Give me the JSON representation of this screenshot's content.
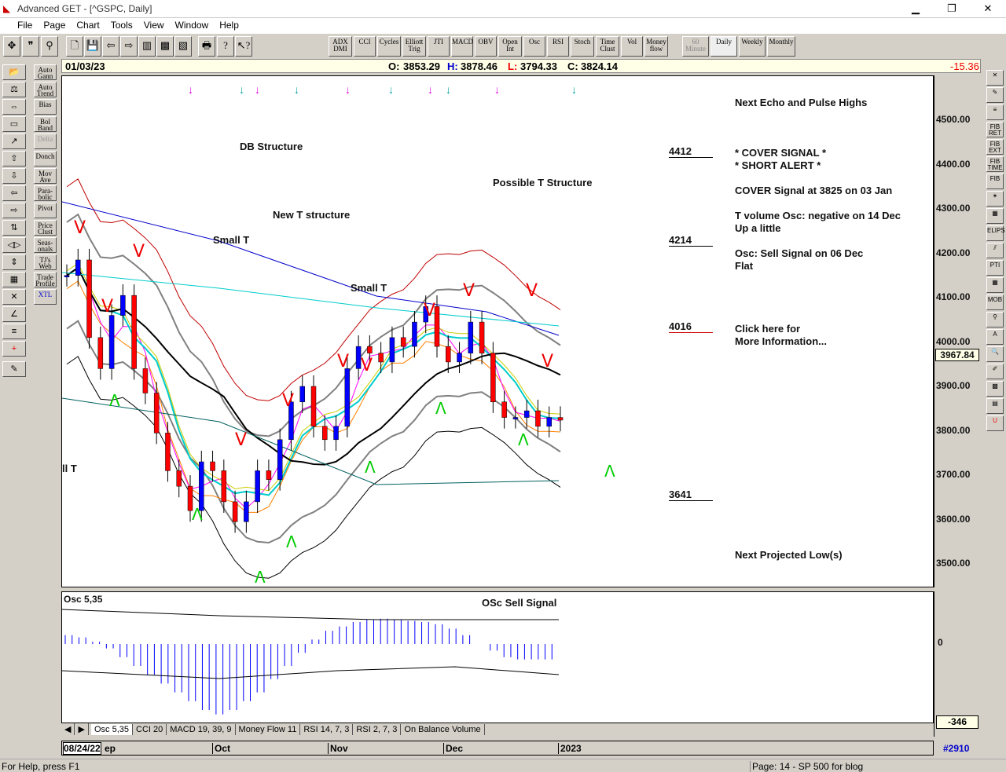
{
  "window": {
    "title": "Advanced GET - [^GSPC, Daily]",
    "minimize": "▁",
    "restore": "❐",
    "close": "✕"
  },
  "menu": [
    "File",
    "Page",
    "Chart",
    "Tools",
    "View",
    "Window",
    "Help"
  ],
  "toolbar": {
    "indicators": [
      "ADX DMI",
      "CCI",
      "Cycles",
      "Elliott Trig",
      "JTI",
      "MACD",
      "OBV",
      "Open Int",
      "Osc",
      "RSI",
      "Stoch",
      "Time Clust",
      "Vol",
      "Money flow"
    ],
    "timeframes": [
      "60 Minute",
      "Daily",
      "Weekly",
      "Monthly"
    ],
    "active_timeframe": "Daily"
  },
  "left_tools": [
    "Auto Gann",
    "Auto Trend",
    "Bias",
    "Bol Band",
    "Delta",
    "Donch",
    "Mov Ave",
    "Para-bolic",
    "Pivot",
    "Price Clust",
    "Seas-onals",
    "TJ's Web",
    "Trade Profile",
    "XTL"
  ],
  "left_icons": [
    "open-folder",
    "balance",
    "reset",
    "study",
    "elliott",
    "arrow-up",
    "arrow-down",
    "arrow-left",
    "arrow-right",
    "compress",
    "expand-horizontal",
    "expand-vertical",
    "grid",
    "lines",
    "gann",
    "fib",
    "crosshair",
    "notes"
  ],
  "right_tools": [
    "✕",
    "✎",
    "≡",
    "FIB RET",
    "FIB EXT",
    "FIB TIME",
    "FIB",
    "✶",
    "▦",
    "ELIPS",
    "⫽",
    "PTI",
    "▦",
    "MOB",
    "⚲",
    "A",
    "🔍",
    "✐",
    "▩",
    "▤",
    "U"
  ],
  "quote": {
    "date": "01/03/23",
    "open_label": "O:",
    "open": "3853.29",
    "high_label": "H:",
    "high": "3878.46",
    "low_label": "L:",
    "low": "3794.33",
    "close_label": "C:",
    "close": "3824.14",
    "change": "-15.36"
  },
  "price_axis": {
    "ticks": [
      "4500.00",
      "4400.00",
      "4300.00",
      "4200.00",
      "4100.00",
      "4000.00",
      "3900.00",
      "3800.00",
      "3700.00",
      "3600.00",
      "3500.00"
    ],
    "current": "3967.84"
  },
  "annotations": {
    "db": "DB Structure",
    "new_t": "New T structure",
    "small_t1": "Small T",
    "small_t2": "Small T",
    "possible_t": "Possible T Structure",
    "all_t": "ll T",
    "levels": [
      "4412",
      "4214",
      "4016",
      "3641"
    ]
  },
  "panel": {
    "echo": "Next Echo and Pulse Highs",
    "cover": "* COVER SIGNAL *",
    "short": "* SHORT ALERT *",
    "cover_at": "COVER Signal at 3825 on 03 Jan",
    "tvol": "T volume Osc: negative on 14 Dec",
    "tvol2": "Up a little",
    "osc": "Osc: Sell Signal on 06 Dec",
    "osc2": "Flat",
    "click": "Click here for",
    "more": "More Information...",
    "proj": "Next Projected Low(s)"
  },
  "oscillator": {
    "label": "Osc 5,35",
    "signal": "OSc Sell Signal",
    "zero": "0",
    "min": "-346"
  },
  "tabs": [
    "Osc 5,35",
    "CCI 20",
    "MACD 19, 39, 9",
    "Money Flow 11",
    "RSI 14, 7, 3",
    "RSI 2, 7, 3",
    "On Balance Volume"
  ],
  "dates": {
    "start": "08/24/22",
    "sep": "ep",
    "oct": "Oct",
    "nov": "Nov",
    "dec": "Dec",
    "y2023": "2023",
    "bar_no": "#2910"
  },
  "status": {
    "help": "For Help, press F1",
    "page": "Page: 14 - SP 500 for blog"
  },
  "chart_data": {
    "type": "candlestick",
    "ylim": [
      3480,
      4560
    ],
    "closes": [
      4150,
      4185,
      4010,
      3940,
      4060,
      4105,
      3940,
      3885,
      3795,
      3710,
      3675,
      3620,
      3730,
      3710,
      3640,
      3595,
      3640,
      3710,
      3690,
      3780,
      3865,
      3900,
      3810,
      3780,
      3810,
      3940,
      3990,
      3975,
      3955,
      4010,
      3990,
      4045,
      4080,
      3990,
      3955,
      3975,
      4045,
      3975,
      3865,
      3830,
      3830,
      3845,
      3810,
      3830,
      3824
    ],
    "osc": [
      40,
      30,
      10,
      -20,
      -60,
      -100,
      -140,
      -180,
      -220,
      -260,
      -300,
      -320,
      -300,
      -260,
      -220,
      -160,
      -100,
      -40,
      20,
      60,
      80,
      100,
      110,
      115,
      110,
      105,
      100,
      90,
      70,
      40,
      0,
      -30,
      -60,
      -70,
      -70,
      -70
    ],
    "colors": {
      "up": "#0000ff",
      "down": "#ff0000",
      "ma_black": "#000000",
      "ma_blue": "#0000cc",
      "ma_cyan": "#00cccc"
    }
  }
}
